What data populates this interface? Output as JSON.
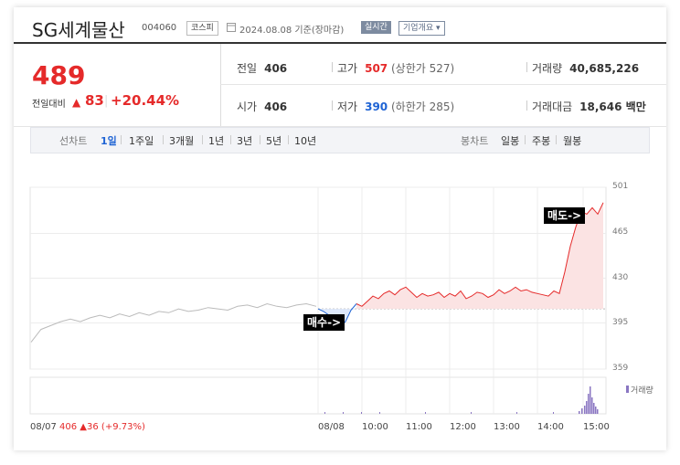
{
  "header": {
    "name": "SG세계물산",
    "code": "004060",
    "market": "코스피",
    "date": "2024.08.08 기준(장마감)",
    "live_label": "실시간",
    "info_label": "기업개요 ▾"
  },
  "price": {
    "current": "489",
    "change_label": "전일대비",
    "change_arrow": "▲",
    "change_value": "83",
    "change_pct": "+20.44%"
  },
  "stats": {
    "prev_close_label": "전일",
    "prev_close": "406",
    "high_label": "고가",
    "high": "507",
    "upper_limit": "(상한가 527)",
    "volume_label": "거래량",
    "volume": "40,685,226",
    "open_label": "시가",
    "open": "406",
    "low_label": "저가",
    "low": "390",
    "lower_limit": "(하한가 285)",
    "amount_label": "거래대금",
    "amount": "18,646 백만"
  },
  "period_bar": {
    "line_label": "선차트",
    "line_items": [
      "1일",
      "1주일",
      "3개월",
      "1년",
      "3년",
      "5년",
      "10년"
    ],
    "active": "1일",
    "candle_label": "봉차트",
    "candle_items": [
      "일봉",
      "주봉",
      "월봉"
    ]
  },
  "chart_data": {
    "type": "line",
    "y_ticks": [
      "501",
      "465",
      "430",
      "395",
      "359"
    ],
    "ylim": [
      359,
      501
    ],
    "x_labels": [
      "08/07",
      "08/08",
      "10:00",
      "11:00",
      "12:00",
      "13:00",
      "14:00",
      "15:00"
    ],
    "prev_close": 406,
    "series": [
      {
        "values_prev_day": [
          380,
          390,
          393,
          396,
          398,
          396,
          399,
          401,
          399,
          402,
          400,
          403,
          401,
          404,
          403,
          406,
          404,
          405,
          407,
          406,
          405,
          408,
          409,
          407,
          410,
          408,
          407,
          409,
          410,
          408
        ]
      },
      {
        "values_today": [
          406,
          404,
          401,
          395,
          392,
          396,
          405,
          410,
          408,
          412,
          416,
          414,
          418,
          420,
          417,
          421,
          423,
          419,
          415,
          418,
          416,
          417,
          419,
          415,
          418,
          416,
          420,
          414,
          416,
          419,
          418,
          415,
          417,
          421,
          418,
          420,
          423,
          420,
          421,
          419,
          418,
          417,
          416,
          420,
          418,
          435,
          455,
          470,
          482,
          480,
          485,
          480,
          489
        ]
      }
    ],
    "callouts": [
      "매수->",
      "매도->"
    ],
    "volume_legend": "거래량"
  },
  "footer": {
    "date": "08/07",
    "price": "406",
    "arrow": "▲",
    "change": "36",
    "pct": "(+9.73%)"
  },
  "colors": {
    "up": "#e52a2a",
    "down": "#1e63d4",
    "prev_line": "#bbbbbb",
    "volume": "#8a76c2"
  }
}
